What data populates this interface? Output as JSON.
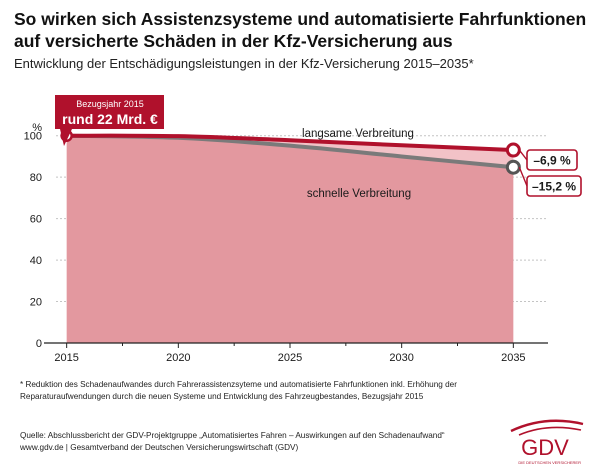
{
  "title_line1": "So wirken sich Assistenzsysteme und automatisierte Fahrfunktionen",
  "title_line2": "auf versicherte Schäden in der Kfz-Versicherung aus",
  "subtitle": "Entwicklung der Entschädigungsleistungen in der Kfz-Versicherung 2015–2035*",
  "footnote_line1": "* Reduktion des Schadenaufwandes durch Fahrerassistenzsyteme und automatisierte Fahrfunktionen inkl.  Erhöhung der",
  "footnote_line2": "Reparaturaufwendungen durch die neuen Systeme und Entwicklung des Fahrzeugbestandes, Bezugsjahr 2015",
  "source_line1": "Quelle: Abschlussbericht der GDV-Projektgruppe „Automatisiertes Fahren – Auswirkungen auf den Schadenaufwand“",
  "source_line2": "www.gdv.de | Gesamtverband der Deutschen Versicherungswirtschaft (GDV)",
  "logo": {
    "text": "GDV",
    "tagline": "DIE DEUTSCHEN VERSICHERER"
  },
  "colors": {
    "slow": "#b0112c",
    "fast": "#7a7a7a",
    "area": "#e3989f",
    "band": "#f2c2c7",
    "text": "#1a1a1a"
  },
  "chart_data": {
    "type": "line",
    "x": [
      2015,
      2020,
      2025,
      2030,
      2035
    ],
    "xlim": [
      2013,
      2037
    ],
    "ylim": [
      0,
      110
    ],
    "yticks": [
      0,
      20,
      40,
      60,
      80,
      100
    ],
    "ylabel": "%",
    "series": [
      {
        "name": "langsame Verbreitung",
        "values": [
          100,
          99.8,
          97.8,
          95.4,
          93.1
        ],
        "end_label": "–6,9 %"
      },
      {
        "name": "schnelle Verbreitung",
        "values": [
          100,
          99.0,
          95.2,
          90.0,
          84.8
        ],
        "end_label": "–15,2 %"
      }
    ],
    "annotations": {
      "base_year_label": "Bezugsjahr 2015",
      "base_value_label": "rund 22 Mrd. €"
    }
  }
}
